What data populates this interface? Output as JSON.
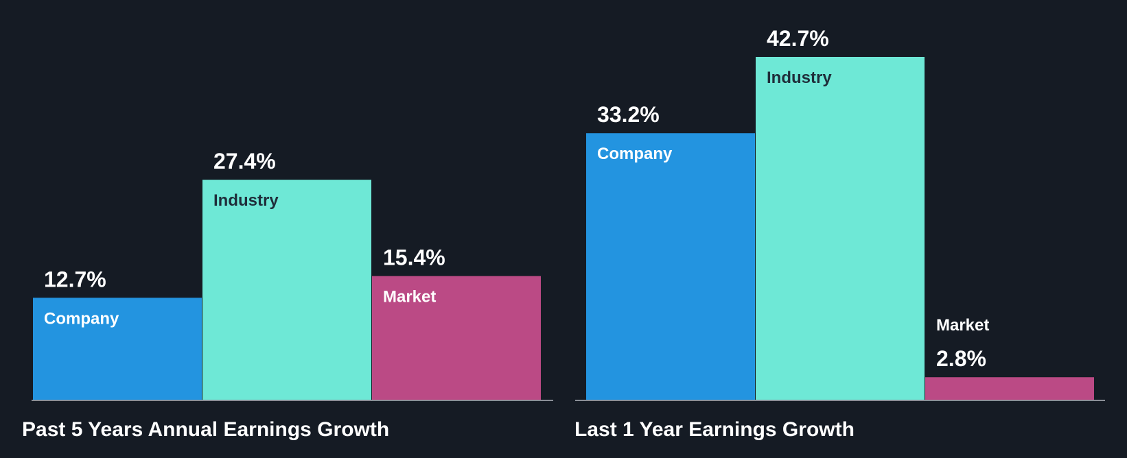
{
  "chart_data": [
    {
      "type": "bar",
      "title": "Past 5 Years Annual Earnings Growth",
      "categories": [
        "Company",
        "Industry",
        "Market"
      ],
      "values": [
        12.7,
        27.4,
        15.4
      ],
      "value_labels": [
        "12.7%",
        "27.4%",
        "15.4%"
      ],
      "unit": "%",
      "ylim": [
        0,
        42.7
      ],
      "xlabel": "",
      "ylabel": ""
    },
    {
      "type": "bar",
      "title": "Last 1 Year Earnings Growth",
      "categories": [
        "Company",
        "Industry",
        "Market"
      ],
      "values": [
        33.2,
        42.7,
        2.8
      ],
      "value_labels": [
        "33.2%",
        "42.7%",
        "2.8%"
      ],
      "unit": "%",
      "ylim": [
        0,
        42.7
      ],
      "xlabel": "",
      "ylabel": ""
    }
  ],
  "colors": {
    "background": "#151b24",
    "company": "#2394e0",
    "industry": "#6ee8d6",
    "market": "#bb4a85",
    "axis": "#8a8f97",
    "label_light": "#ffffff",
    "label_dark": "#1f2d3a"
  }
}
